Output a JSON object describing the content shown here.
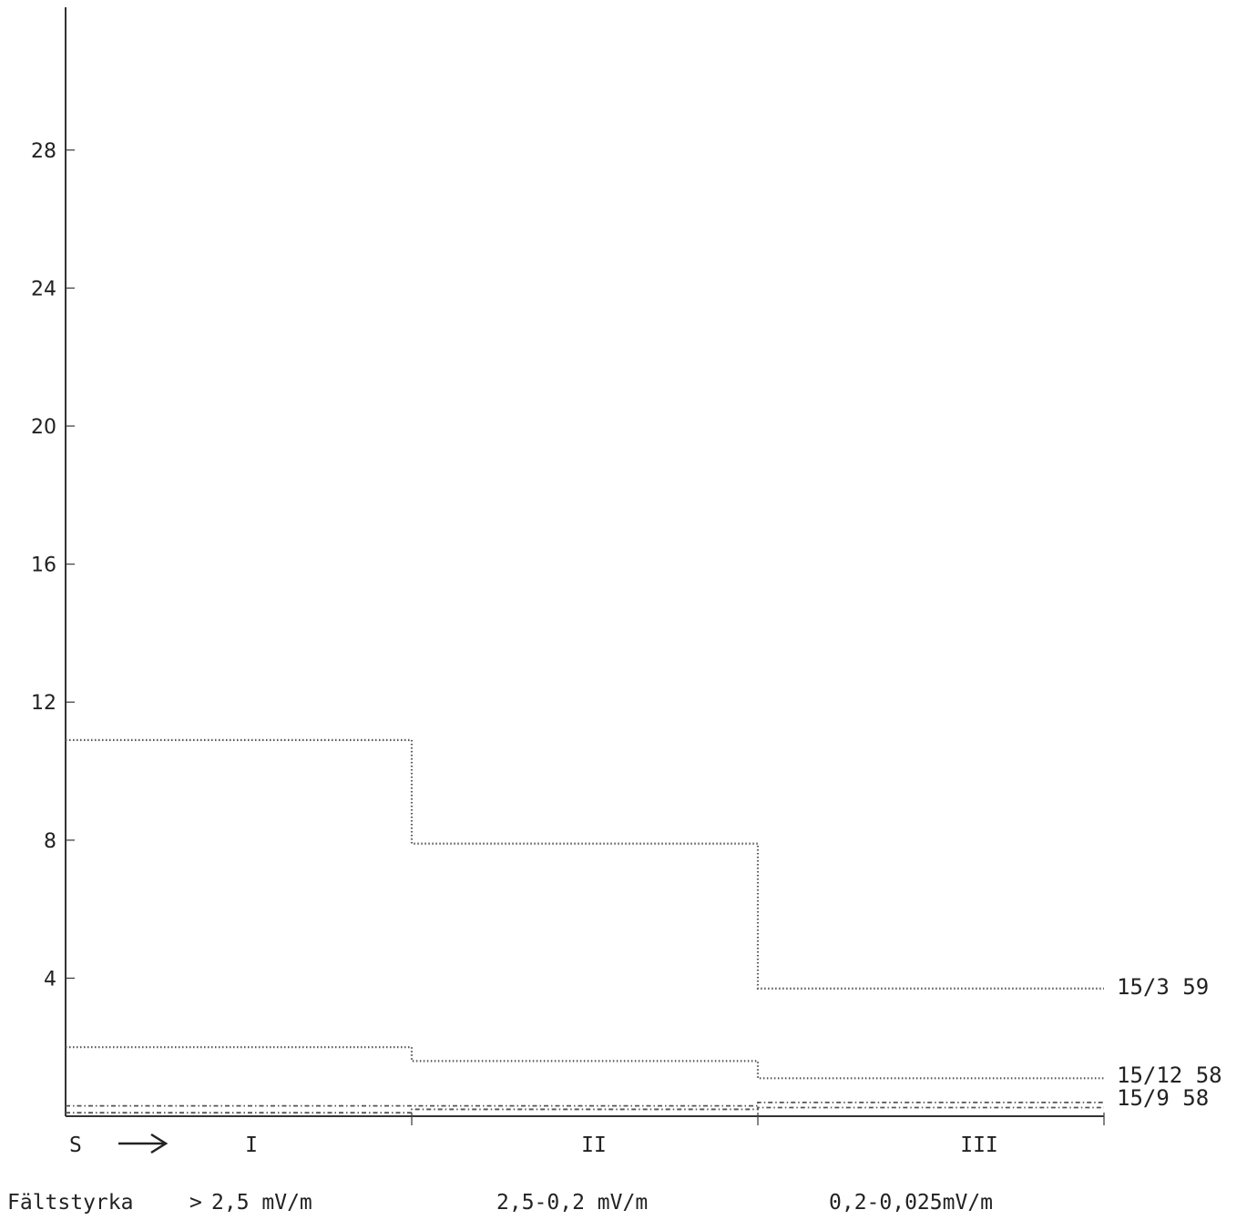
{
  "chart_data": {
    "type": "line",
    "title": "",
    "xlabel": "",
    "ylabel": "",
    "y_ticks": [
      "4",
      "8",
      "12",
      "16",
      "20",
      "24",
      "28"
    ],
    "y_tick_values": [
      4,
      8,
      12,
      16,
      20,
      24,
      28
    ],
    "ylim": [
      0,
      32
    ],
    "grid": false,
    "start_label": "S",
    "categories": [
      "I",
      "II",
      "III"
    ],
    "field_strength_label": "Fältstyrka",
    "zone_ranges": [
      "2,5 mV/m",
      "2,5-0,2 mV/m",
      "0,2-0,025mV/m"
    ],
    "series": [
      {
        "name": "15/3 59",
        "values": [
          10.9,
          7.9,
          3.7
        ]
      },
      {
        "name": "15/12 58",
        "values": [
          2.0,
          1.6,
          1.1
        ]
      },
      {
        "name": "15/9 58",
        "values": [
          0.3,
          0.3,
          0.4
        ]
      },
      {
        "name": "",
        "values": [
          0.1,
          0.2,
          0.25
        ]
      }
    ]
  }
}
